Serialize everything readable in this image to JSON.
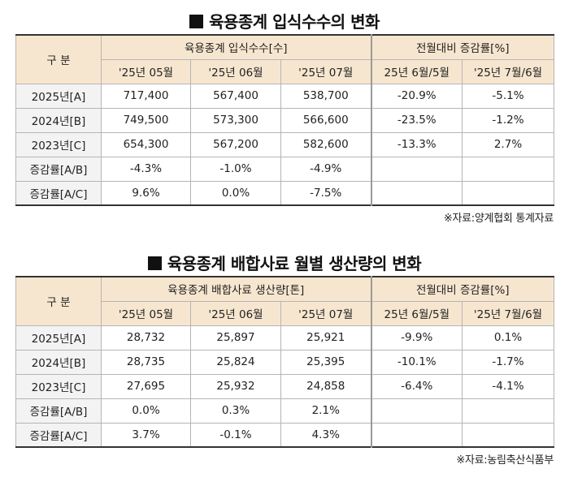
{
  "tables": [
    {
      "title": "육용종계 입식수수의 변화",
      "corner": "구 분",
      "group_left": "육용종계 입식수수[수]",
      "group_right": "전월대비 증감률[%]",
      "subheaders": [
        "'25년 05월",
        "'25년 06월",
        "'25년 07월",
        "25년 6월/5월",
        "'25년 7월/6월"
      ],
      "rows": [
        {
          "label": "2025년[A]",
          "cells": [
            "717,400",
            "567,400",
            "538,700",
            "-20.9%",
            "-5.1%"
          ]
        },
        {
          "label": "2024년[B]",
          "cells": [
            "749,500",
            "573,300",
            "566,600",
            "-23.5%",
            "-1.2%"
          ]
        },
        {
          "label": "2023년[C]",
          "cells": [
            "654,300",
            "567,200",
            "582,600",
            "-13.3%",
            "2.7%"
          ]
        },
        {
          "label": "증감률[A/B]",
          "cells": [
            "-4.3%",
            "-1.0%",
            "-4.9%",
            "",
            ""
          ]
        },
        {
          "label": "증감률[A/C]",
          "cells": [
            "9.6%",
            "0.0%",
            "-7.5%",
            "",
            ""
          ]
        }
      ],
      "source": "※자료:양계협회 통계자료"
    },
    {
      "title": "육용종계 배합사료 월별 생산량의 변화",
      "corner": "구 분",
      "group_left": "육용종계 배합사료 생산량[톤]",
      "group_right": "전월대비 증감률[%]",
      "subheaders": [
        "'25년 05월",
        "'25년 06월",
        "'25년 07월",
        "25년 6월/5월",
        "'25년 7월/6월"
      ],
      "rows": [
        {
          "label": "2025년[A]",
          "cells": [
            "28,732",
            "25,897",
            "25,921",
            "-9.9%",
            "0.1%"
          ]
        },
        {
          "label": "2024년[B]",
          "cells": [
            "28,735",
            "25,824",
            "25,395",
            "-10.1%",
            "-1.7%"
          ]
        },
        {
          "label": "2023년[C]",
          "cells": [
            "27,695",
            "25,932",
            "24,858",
            "-6.4%",
            "-4.1%"
          ]
        },
        {
          "label": "증감률[A/B]",
          "cells": [
            "0.0%",
            "0.3%",
            "2.1%",
            "",
            ""
          ]
        },
        {
          "label": "증감률[A/C]",
          "cells": [
            "3.7%",
            "-0.1%",
            "4.3%",
            "",
            ""
          ]
        }
      ],
      "source": "※자료:농림축산식품부"
    }
  ],
  "colors": {
    "header_bg": "#f7e6cf",
    "row_header_bg": "#f3f3f3",
    "border": "#b5b5b5"
  }
}
